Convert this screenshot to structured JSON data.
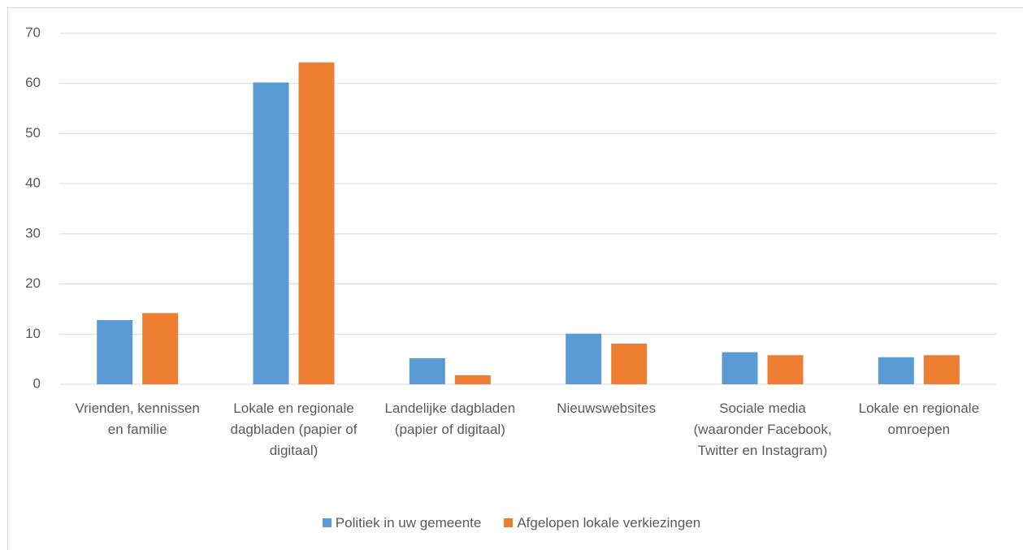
{
  "chart_data": {
    "type": "bar",
    "categories": [
      "Vrienden, kennissen en familie",
      "Lokale en regionale dagbladen (papier of digitaal)",
      "Landelijke dagbladen (papier of digitaal)",
      "Nieuwswebsites",
      "Sociale media (waaronder Facebook, Twitter en Instagram)",
      "Lokale en regionale omroepen"
    ],
    "series": [
      {
        "name": "Politiek in uw gemeente",
        "color": "#5b9bd5",
        "values": [
          12.8,
          60.2,
          5.2,
          10.1,
          6.4,
          5.4
        ]
      },
      {
        "name": "Afgelopen lokale verkiezingen",
        "color": "#ed7d31",
        "values": [
          14.2,
          64.2,
          1.8,
          8.1,
          5.8,
          5.8
        ]
      }
    ],
    "ylim": [
      0,
      70
    ],
    "yticks": [
      0,
      10,
      20,
      30,
      40,
      50,
      60,
      70
    ],
    "grid": true,
    "legend": "bottom"
  }
}
